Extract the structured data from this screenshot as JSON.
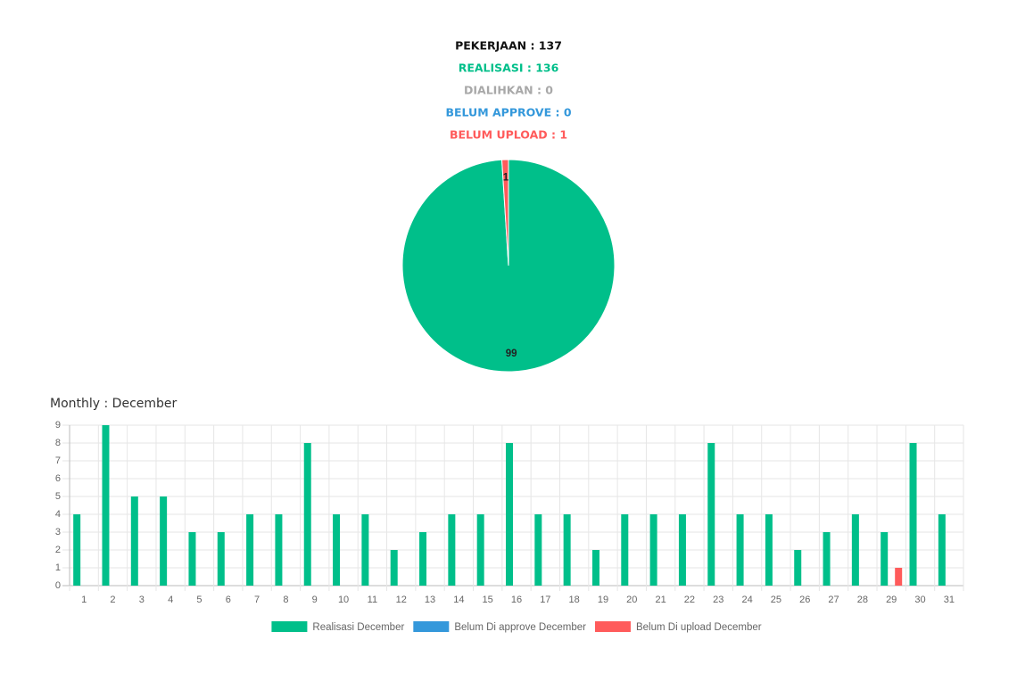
{
  "summary": [
    {
      "text": "PEKERJAAN : 137",
      "color": "#111111"
    },
    {
      "text": "REALISASI : 136",
      "color": "#00bf8a"
    },
    {
      "text": "DIALIHKAN : 0",
      "color": "#a8a8a8"
    },
    {
      "text": "BELUM APPROVE : 0",
      "color": "#3498db"
    },
    {
      "text": "BELUM UPLOAD : 1",
      "color": "#ff5b5b"
    }
  ],
  "chart_data": [
    {
      "type": "pie",
      "values": [
        99,
        1
      ],
      "colors": [
        "#00bf8a",
        "#ff5b5b"
      ]
    },
    {
      "type": "bar",
      "title": "Monthly : December",
      "categories": [
        "1",
        "2",
        "3",
        "4",
        "5",
        "6",
        "7",
        "8",
        "9",
        "10",
        "11",
        "12",
        "13",
        "14",
        "15",
        "16",
        "17",
        "18",
        "19",
        "20",
        "21",
        "22",
        "23",
        "24",
        "25",
        "26",
        "27",
        "28",
        "29",
        "30",
        "31"
      ],
      "series": [
        {
          "name": "Realisasi December",
          "color": "#00bf8a",
          "values": [
            4,
            9,
            5,
            5,
            3,
            3,
            4,
            4,
            8,
            4,
            4,
            2,
            3,
            4,
            4,
            8,
            4,
            4,
            2,
            4,
            4,
            4,
            8,
            4,
            4,
            2,
            3,
            4,
            3,
            8,
            4
          ]
        },
        {
          "name": "Belum Di approve December",
          "color": "#3498db",
          "values": [
            0,
            0,
            0,
            0,
            0,
            0,
            0,
            0,
            0,
            0,
            0,
            0,
            0,
            0,
            0,
            0,
            0,
            0,
            0,
            0,
            0,
            0,
            0,
            0,
            0,
            0,
            0,
            0,
            0,
            0,
            0
          ]
        },
        {
          "name": "Belum Di upload December",
          "color": "#ff5b5b",
          "values": [
            0,
            0,
            0,
            0,
            0,
            0,
            0,
            0,
            0,
            0,
            0,
            0,
            0,
            0,
            0,
            0,
            0,
            0,
            0,
            0,
            0,
            0,
            0,
            0,
            0,
            0,
            0,
            0,
            1,
            0,
            0
          ]
        }
      ],
      "ylim": [
        0,
        9
      ],
      "yticks": [
        0,
        1,
        2,
        3,
        4,
        5,
        6,
        7,
        8,
        9
      ],
      "grid": true,
      "legend": "bottom"
    }
  ]
}
